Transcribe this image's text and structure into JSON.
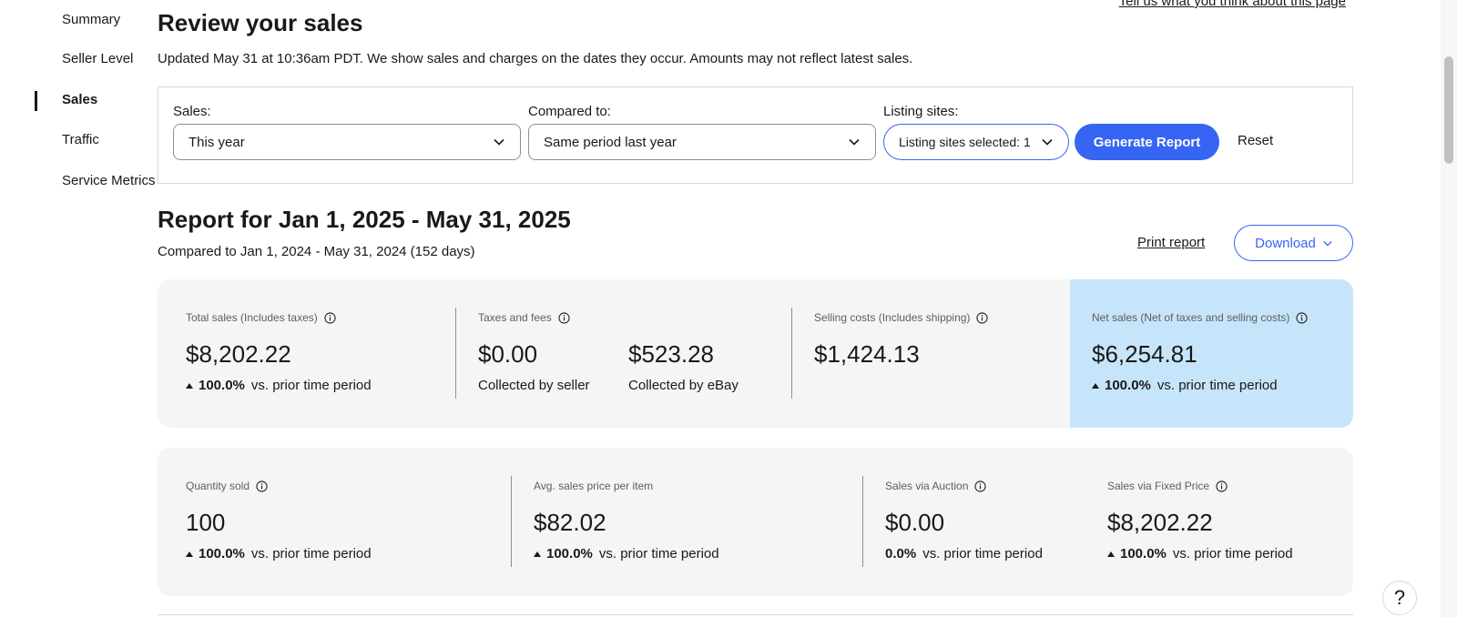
{
  "sidebar": {
    "items": [
      {
        "label": "Summary"
      },
      {
        "label": "Seller Level"
      },
      {
        "label": "Sales"
      },
      {
        "label": "Traffic"
      },
      {
        "label": "Service Metrics"
      }
    ],
    "active": "Sales"
  },
  "header": {
    "feedback_link": "Tell us what you think about this page",
    "title": "Review your sales",
    "updated": "Updated May 31 at 10:36am PDT. We show sales and charges on the dates they occur. Amounts may not reflect latest sales."
  },
  "filters": {
    "sales_label": "Sales:",
    "sales_value": "This year",
    "compared_label": "Compared to:",
    "compared_value": "Same period last year",
    "sites_label": "Listing sites:",
    "sites_value": "Listing sites selected: 1",
    "generate_label": "Generate Report",
    "reset_label": "Reset"
  },
  "report": {
    "title": "Report for Jan 1, 2025 - May 31, 2025",
    "compared": "Compared to Jan 1, 2024 - May 31, 2024 (152 days)",
    "print_label": "Print report",
    "download_label": "Download"
  },
  "metrics_top": {
    "total_sales": {
      "label": "Total sales (Includes taxes)",
      "value": "$8,202.22",
      "pct": "100.0%",
      "suffix": "vs. prior time period"
    },
    "taxes_fees": {
      "label": "Taxes and fees",
      "seller_value": "$0.00",
      "seller_caption": "Collected by seller",
      "ebay_value": "$523.28",
      "ebay_caption": "Collected by eBay"
    },
    "selling_costs": {
      "label": "Selling costs (Includes shipping)",
      "value": "$1,424.13"
    },
    "net_sales": {
      "label": "Net sales (Net of taxes and selling costs)",
      "value": "$6,254.81",
      "pct": "100.0%",
      "suffix": "vs. prior time period"
    }
  },
  "metrics_bottom": {
    "quantity_sold": {
      "label": "Quantity sold",
      "value": "100",
      "pct": "100.0%",
      "suffix": "vs. prior time period"
    },
    "avg_price": {
      "label": "Avg. sales price per item",
      "value": "$82.02",
      "pct": "100.0%",
      "suffix": "vs. prior time period"
    },
    "auction": {
      "label": "Sales via Auction",
      "value": "$0.00",
      "pct": "0.0%",
      "suffix": "vs. prior time period"
    },
    "fixed_price": {
      "label": "Sales via Fixed Price",
      "value": "$8,202.22",
      "pct": "100.0%",
      "suffix": "vs. prior time period"
    }
  },
  "help": {
    "label": "?"
  },
  "colors": {
    "accent": "#3665f3",
    "highlight": "#c7e5fa",
    "card_bg": "#f5f5f5"
  }
}
